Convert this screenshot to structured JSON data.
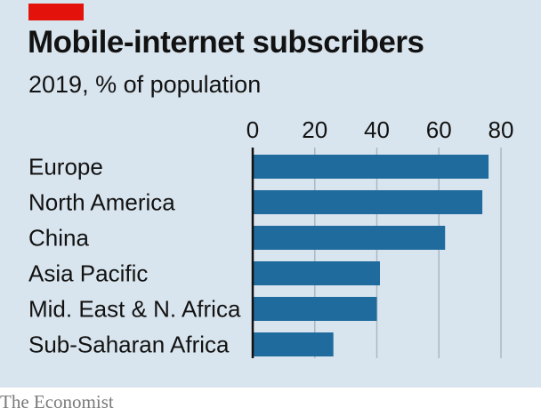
{
  "brand": {
    "accent": "#e3120b",
    "background": "#d9e5ee",
    "bar": "#1f6b9e"
  },
  "source": "The Economist",
  "chart_data": {
    "type": "bar",
    "orientation": "horizontal",
    "title": "Mobile-internet subscribers",
    "subtitle": "2019, % of population",
    "categories": [
      "Europe",
      "North America",
      "China",
      "Asia Pacific",
      "Mid. East & N. Africa",
      "Sub-Saharan Africa"
    ],
    "values": [
      76,
      74,
      62,
      41,
      40,
      26
    ],
    "xlim": [
      0,
      80
    ],
    "xticks": [
      "0",
      "20",
      "40",
      "60",
      "80"
    ],
    "grid": true
  }
}
